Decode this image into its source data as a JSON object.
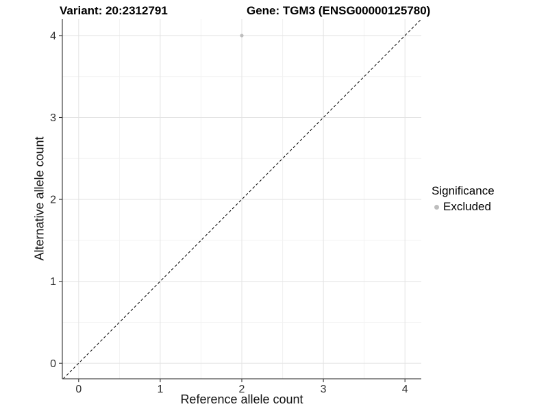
{
  "header": {
    "variant_title": "Variant: 20:2312791",
    "gene_title": "Gene: TGM3 (ENSG00000125780)"
  },
  "chart_data": {
    "type": "scatter",
    "title": "Variant: 20:2312791  /  Gene: TGM3 (ENSG00000125780)",
    "xlabel": "Reference allele count",
    "ylabel": "Alternative allele count",
    "xlim": [
      -0.2,
      4.2
    ],
    "ylim": [
      -0.19,
      4.2
    ],
    "x_ticks": [
      0,
      1,
      2,
      3,
      4
    ],
    "y_ticks": [
      0,
      1,
      2,
      3,
      4
    ],
    "grid": {
      "major": true,
      "minor": true,
      "major_color": "#e3e3e3",
      "minor_color": "#f2f2f2"
    },
    "axis_line_color": "#4d4d4d",
    "tick_mark_color": "#333333",
    "identity_line": {
      "equation": "y = x",
      "style": "dashed",
      "color": "#000000"
    },
    "series": [
      {
        "name": "Excluded",
        "color": "#bdbdbd",
        "points": [
          {
            "x": 2,
            "y": 4
          }
        ]
      }
    ],
    "legend": {
      "title": "Significance",
      "position": "right",
      "entries": [
        {
          "label": "Excluded",
          "color": "#bdbdbd"
        }
      ]
    }
  }
}
